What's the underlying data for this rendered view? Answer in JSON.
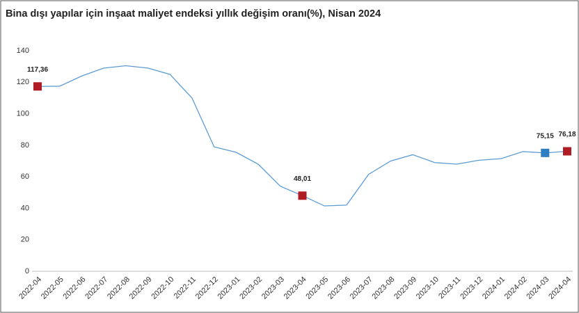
{
  "chart_data": {
    "type": "line",
    "title": "Bina dışı yapılar için inşaat maliyet endeksi yıllık değişim oranı(%), Nisan 2024",
    "categories": [
      "2022-04",
      "2022-05",
      "2022-06",
      "2022-07",
      "2022-08",
      "2022-09",
      "2022-10",
      "2022-11",
      "2022-12",
      "2023-01",
      "2023-02",
      "2023-03",
      "2023-04",
      "2023-05",
      "2023-06",
      "2023-07",
      "2023-08",
      "2023-09",
      "2023-10",
      "2023-11",
      "2023-12",
      "2024-01",
      "2024-02",
      "2024-03",
      "2024-04"
    ],
    "values": [
      117.36,
      117.5,
      124,
      129,
      130.5,
      129,
      125,
      110,
      79,
      75.5,
      68,
      54,
      48.01,
      41.5,
      42,
      61.5,
      70,
      74,
      69,
      68,
      70.5,
      71.5,
      76,
      75.15,
      76.18
    ],
    "value_labels": [
      "117,36",
      null,
      null,
      null,
      null,
      null,
      null,
      null,
      null,
      null,
      null,
      null,
      "48,01",
      null,
      null,
      null,
      null,
      null,
      null,
      null,
      null,
      null,
      null,
      "75,15",
      "76,18"
    ],
    "marker_colors": [
      "#b01c24",
      null,
      null,
      null,
      null,
      null,
      null,
      null,
      null,
      null,
      null,
      null,
      "#b01c24",
      null,
      null,
      null,
      null,
      null,
      null,
      null,
      null,
      null,
      null,
      "#2e7fc1",
      "#b01c24"
    ],
    "color": "#5b9bd5",
    "ylim": [
      0,
      140
    ],
    "yticks": [
      0,
      20,
      40,
      60,
      80,
      100,
      120,
      140
    ],
    "grid": false
  }
}
